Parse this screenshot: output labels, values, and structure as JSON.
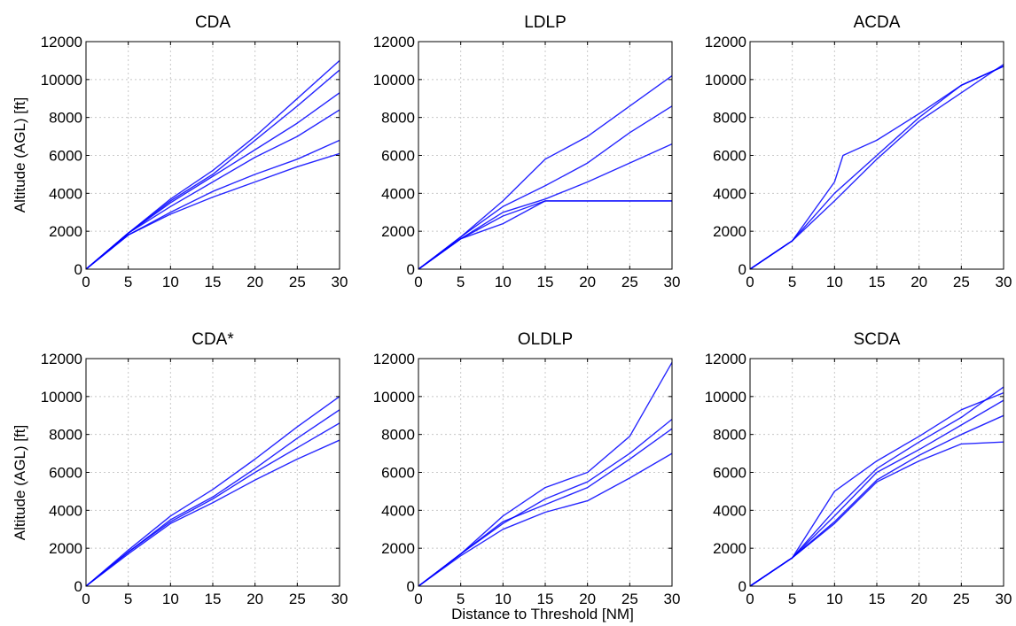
{
  "figure": {
    "xlabel": "Distance to Threshold [NM]",
    "ylabel": "Altitude (AGL) [ft]"
  },
  "chart_data": [
    {
      "type": "line",
      "title": "CDA",
      "xlim": [
        0,
        30
      ],
      "ylim": [
        0,
        12000
      ],
      "xticks": [
        0,
        5,
        10,
        15,
        20,
        25,
        30
      ],
      "yticks": [
        0,
        2000,
        4000,
        6000,
        8000,
        10000,
        12000
      ],
      "grid": true,
      "series_color": "#0000ff",
      "series": [
        {
          "x": [
            0,
            5,
            10,
            15,
            20,
            25,
            30
          ],
          "values": [
            0,
            1900,
            3600,
            5000,
            6800,
            8600,
            10500
          ]
        },
        {
          "x": [
            0,
            5,
            10,
            15,
            20,
            25,
            30
          ],
          "values": [
            0,
            1900,
            3300,
            4600,
            5900,
            7000,
            8400
          ]
        },
        {
          "x": [
            0,
            5,
            10,
            15,
            20,
            25,
            30
          ],
          "values": [
            0,
            1800,
            3000,
            4100,
            5000,
            5800,
            6800
          ]
        },
        {
          "x": [
            0,
            5,
            10,
            15,
            20,
            25,
            30
          ],
          "values": [
            0,
            1800,
            2900,
            3800,
            4600,
            5400,
            6100
          ]
        },
        {
          "x": [
            0,
            5,
            10,
            15,
            20,
            25,
            30
          ],
          "values": [
            0,
            1900,
            3700,
            5200,
            7000,
            9000,
            11000
          ]
        },
        {
          "x": [
            0,
            5,
            10,
            15,
            20,
            25,
            30
          ],
          "values": [
            0,
            1900,
            3500,
            4900,
            6300,
            7700,
            9300
          ]
        }
      ]
    },
    {
      "type": "line",
      "title": "LDLP",
      "xlim": [
        0,
        30
      ],
      "ylim": [
        0,
        12000
      ],
      "xticks": [
        0,
        5,
        10,
        15,
        20,
        25,
        30
      ],
      "yticks": [
        0,
        2000,
        4000,
        6000,
        8000,
        10000,
        12000
      ],
      "grid": true,
      "series_color": "#0000ff",
      "series": [
        {
          "x": [
            0,
            5,
            10,
            15,
            20,
            25,
            30
          ],
          "values": [
            0,
            1700,
            3600,
            5800,
            7000,
            8600,
            10200
          ]
        },
        {
          "x": [
            0,
            5,
            10,
            15,
            20,
            25,
            30
          ],
          "values": [
            0,
            1700,
            3300,
            4400,
            5600,
            7200,
            8600
          ]
        },
        {
          "x": [
            0,
            5,
            10,
            15,
            20,
            25,
            30
          ],
          "values": [
            0,
            1600,
            3000,
            3700,
            4600,
            5600,
            6600
          ]
        },
        {
          "x": [
            0,
            5,
            10,
            15,
            20,
            25,
            30
          ],
          "values": [
            0,
            1600,
            2800,
            3600,
            3600,
            3600,
            3600
          ]
        },
        {
          "x": [
            0,
            5,
            10,
            15,
            20,
            25,
            30
          ],
          "values": [
            0,
            1600,
            2400,
            3600,
            3600,
            3600,
            3600
          ]
        }
      ]
    },
    {
      "type": "line",
      "title": "ACDA",
      "xlim": [
        0,
        30
      ],
      "ylim": [
        0,
        12000
      ],
      "xticks": [
        0,
        5,
        10,
        15,
        20,
        25,
        30
      ],
      "yticks": [
        0,
        2000,
        4000,
        6000,
        8000,
        10000,
        12000
      ],
      "grid": true,
      "series_color": "#0000ff",
      "series": [
        {
          "x": [
            0,
            5,
            10,
            15,
            20,
            25,
            30
          ],
          "values": [
            0,
            1500,
            4000,
            6000,
            8000,
            9700,
            10700
          ]
        },
        {
          "x": [
            0,
            5,
            10,
            11,
            15,
            20,
            25,
            30
          ],
          "values": [
            0,
            1500,
            4600,
            6000,
            6800,
            8200,
            9700,
            10700
          ]
        },
        {
          "x": [
            0,
            5,
            10,
            15,
            20,
            25,
            30
          ],
          "values": [
            0,
            1500,
            3600,
            5800,
            7800,
            9300,
            10800
          ]
        }
      ]
    },
    {
      "type": "line",
      "title": "CDA*",
      "xlim": [
        0,
        30
      ],
      "ylim": [
        0,
        12000
      ],
      "xticks": [
        0,
        5,
        10,
        15,
        20,
        25,
        30
      ],
      "yticks": [
        0,
        2000,
        4000,
        6000,
        8000,
        10000,
        12000
      ],
      "grid": true,
      "series_color": "#0000ff",
      "series": [
        {
          "x": [
            0,
            5,
            10,
            15,
            20,
            25,
            30
          ],
          "values": [
            0,
            1800,
            3500,
            4700,
            6200,
            7800,
            9300
          ]
        },
        {
          "x": [
            0,
            5,
            10,
            15,
            20,
            25,
            30
          ],
          "values": [
            0,
            1900,
            3700,
            5100,
            6700,
            8400,
            10000
          ]
        },
        {
          "x": [
            0,
            5,
            10,
            15,
            20,
            25,
            30
          ],
          "values": [
            0,
            1700,
            3300,
            4400,
            5600,
            6700,
            7700
          ]
        },
        {
          "x": [
            0,
            5,
            10,
            15,
            20,
            25,
            30
          ],
          "values": [
            0,
            1800,
            3400,
            4600,
            6000,
            7300,
            8600
          ]
        }
      ]
    },
    {
      "type": "line",
      "title": "OLDLP",
      "xlim": [
        0,
        30
      ],
      "ylim": [
        0,
        12000
      ],
      "xticks": [
        0,
        5,
        10,
        15,
        20,
        25,
        30
      ],
      "yticks": [
        0,
        2000,
        4000,
        6000,
        8000,
        10000,
        12000
      ],
      "grid": true,
      "series_color": "#0000ff",
      "series": [
        {
          "x": [
            0,
            5,
            10,
            15,
            20,
            25,
            30
          ],
          "values": [
            0,
            1700,
            3700,
            5200,
            6000,
            7900,
            11800
          ]
        },
        {
          "x": [
            0,
            5,
            10,
            15,
            20,
            25,
            30
          ],
          "values": [
            0,
            1700,
            3300,
            4600,
            5500,
            7000,
            8800
          ]
        },
        {
          "x": [
            0,
            5,
            10,
            15,
            20,
            25,
            30
          ],
          "values": [
            0,
            1600,
            3000,
            3900,
            4500,
            5700,
            7000
          ]
        },
        {
          "x": [
            0,
            5,
            10,
            15,
            20,
            25,
            30
          ],
          "values": [
            0,
            1700,
            3400,
            4300,
            5200,
            6700,
            8300
          ]
        }
      ]
    },
    {
      "type": "line",
      "title": "SCDA",
      "xlim": [
        0,
        30
      ],
      "ylim": [
        0,
        12000
      ],
      "xticks": [
        0,
        5,
        10,
        15,
        20,
        25,
        30
      ],
      "yticks": [
        0,
        2000,
        4000,
        6000,
        8000,
        10000,
        12000
      ],
      "grid": true,
      "series_color": "#0000ff",
      "series": [
        {
          "x": [
            0,
            5,
            10,
            15,
            20,
            25,
            30
          ],
          "values": [
            0,
            1500,
            4000,
            6200,
            7600,
            8900,
            10500
          ]
        },
        {
          "x": [
            0,
            5,
            10,
            15,
            20,
            25,
            30
          ],
          "values": [
            0,
            1500,
            5000,
            6600,
            7900,
            9300,
            10200
          ]
        },
        {
          "x": [
            0,
            5,
            10,
            15,
            20,
            25,
            30
          ],
          "values": [
            0,
            1500,
            3400,
            5600,
            6900,
            8000,
            9000
          ]
        },
        {
          "x": [
            0,
            5,
            10,
            15,
            20,
            25,
            30
          ],
          "values": [
            0,
            1500,
            3300,
            5500,
            6600,
            7500,
            7600
          ]
        },
        {
          "x": [
            0,
            5,
            10,
            15,
            20,
            25,
            30
          ],
          "values": [
            0,
            1500,
            3700,
            6000,
            7200,
            8500,
            9800
          ]
        }
      ]
    }
  ]
}
